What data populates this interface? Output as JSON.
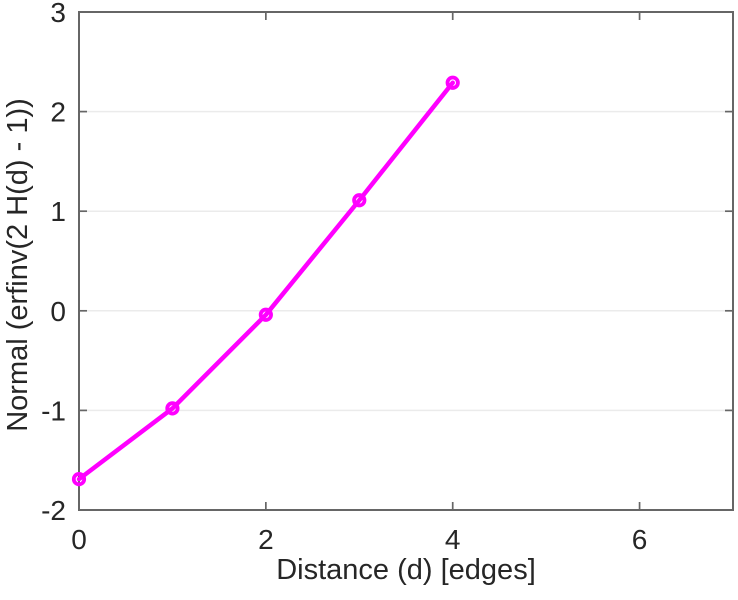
{
  "figure": {
    "background": "#FFFFFF"
  },
  "chart_data": {
    "type": "line",
    "title": "",
    "xlabel": "Distance (d) [edges]",
    "ylabel": "Normal (erfinv(2 H(d) - 1))",
    "x": [
      0,
      1,
      2,
      3,
      4
    ],
    "y": [
      -1.69,
      -0.98,
      -0.04,
      1.11,
      2.29
    ],
    "xlim": [
      0,
      7
    ],
    "ylim": [
      -2,
      3
    ],
    "xticks": [
      0,
      2,
      4,
      6
    ],
    "yticks": [
      -2,
      -1,
      0,
      1,
      2,
      3
    ],
    "grid": "horizontal-only",
    "legend": "none",
    "line_color": "#FF00FF",
    "marker": "open-circle",
    "axis_color": "#666666",
    "grid_color": "#EBEBEB",
    "text_color": "#262626"
  }
}
